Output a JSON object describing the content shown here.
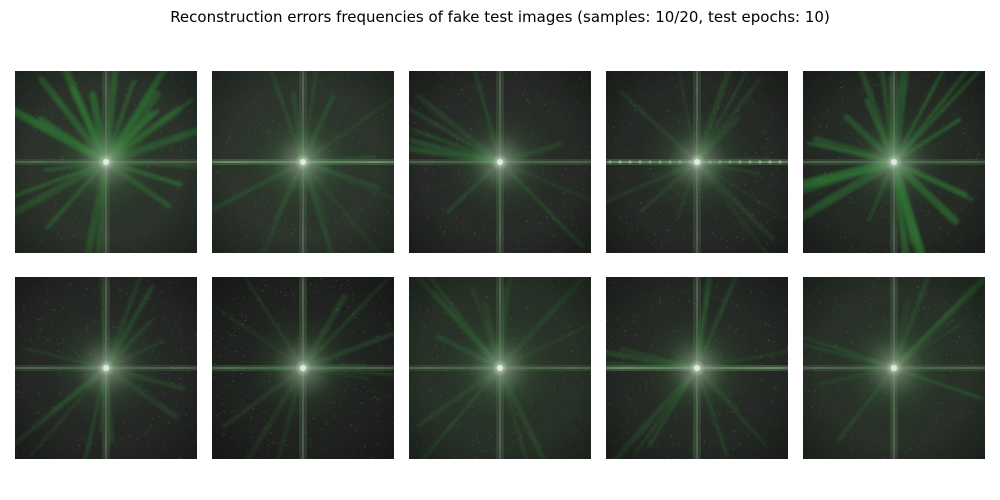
{
  "title": "Reconstruction errors frequencies of fake test images (samples: 10/20, test epochs: 10)",
  "colors": {
    "background_dark": "#262826",
    "streak_green": "#2f7a34",
    "center_glow": "#d8e0d6",
    "page_background": "#ffffff"
  },
  "images": [
    {
      "name": "spectrum-1",
      "bg": "#2b332b",
      "style": "strong-streaks"
    },
    {
      "name": "spectrum-2",
      "bg": "#2c342c",
      "style": "horizontal-band"
    },
    {
      "name": "spectrum-3",
      "bg": "#272a27",
      "style": "cross"
    },
    {
      "name": "spectrum-4",
      "bg": "#262926",
      "style": "horizontal-dots"
    },
    {
      "name": "spectrum-5",
      "bg": "#252a25",
      "style": "strong-streaks"
    },
    {
      "name": "spectrum-6",
      "bg": "#252725",
      "style": "diffuse"
    },
    {
      "name": "spectrum-7",
      "bg": "#202220",
      "style": "cross"
    },
    {
      "name": "spectrum-8",
      "bg": "#283128",
      "style": "diffuse"
    },
    {
      "name": "spectrum-9",
      "bg": "#252925",
      "style": "horizontal-band"
    },
    {
      "name": "spectrum-10",
      "bg": "#283028",
      "style": "diffuse"
    }
  ]
}
